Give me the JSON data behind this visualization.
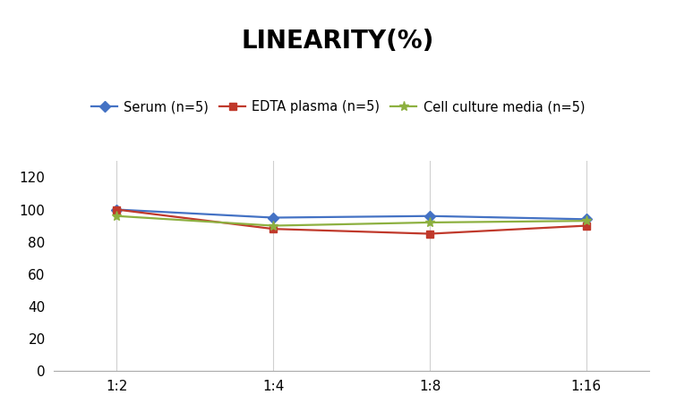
{
  "title": "LINEARITY(%)",
  "title_fontsize": 20,
  "title_fontweight": "bold",
  "x_labels": [
    "1:2",
    "1:4",
    "1:8",
    "1:16"
  ],
  "x_positions": [
    0,
    1,
    2,
    3
  ],
  "series": [
    {
      "label": "Serum (n=5)",
      "values": [
        100,
        95,
        96,
        94
      ],
      "color": "#4472C4",
      "marker": "D",
      "markersize": 6,
      "linewidth": 1.6
    },
    {
      "label": "EDTA plasma (n=5)",
      "values": [
        100,
        88,
        85,
        90
      ],
      "color": "#C0392B",
      "marker": "s",
      "markersize": 6,
      "linewidth": 1.6
    },
    {
      "label": "Cell culture media (n=5)",
      "values": [
        96,
        90,
        92,
        93
      ],
      "color": "#8DB040",
      "marker": "*",
      "markersize": 8,
      "linewidth": 1.6
    }
  ],
  "ylim": [
    0,
    130
  ],
  "yticks": [
    0,
    20,
    40,
    60,
    80,
    100,
    120
  ],
  "background_color": "#ffffff",
  "grid_color": "#d0d0d0",
  "legend_fontsize": 10.5,
  "axis_tick_fontsize": 11
}
